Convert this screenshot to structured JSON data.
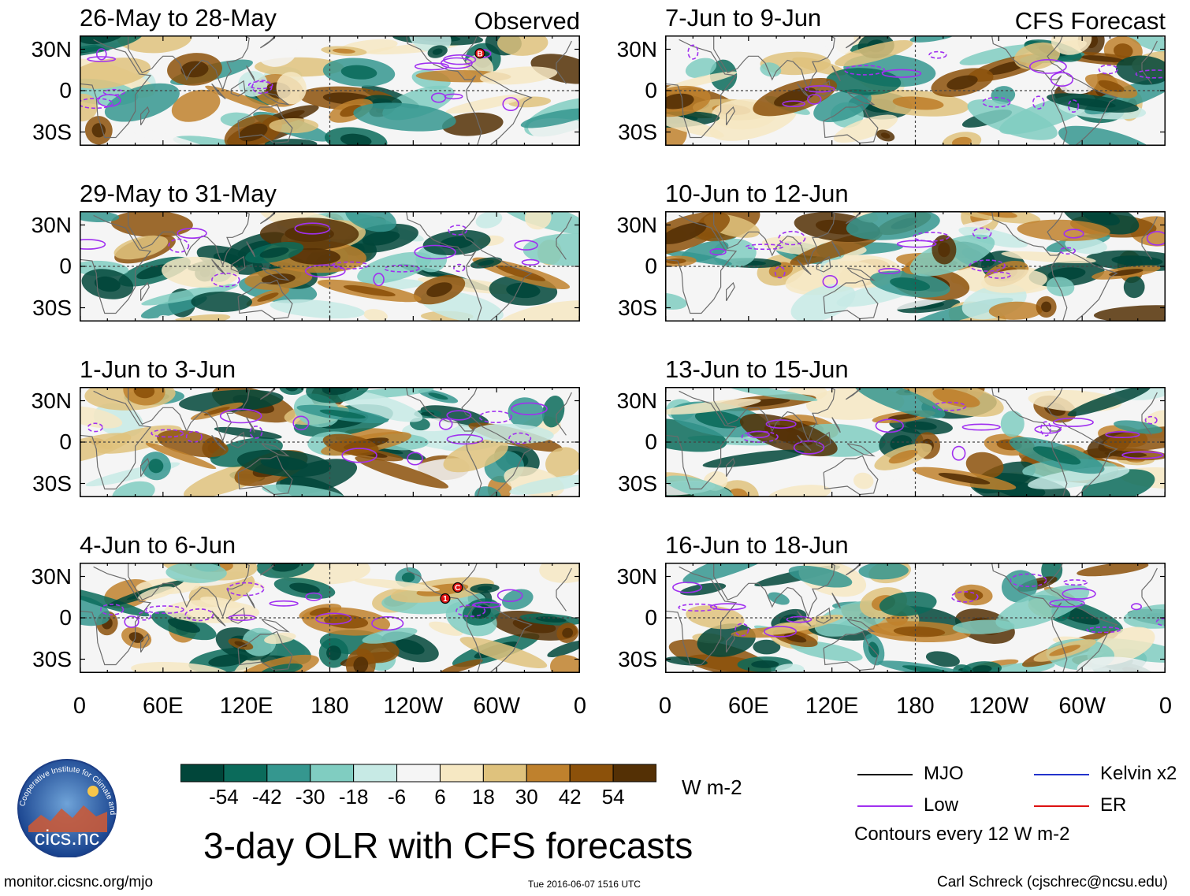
{
  "chart_data": {
    "type": "heatmap",
    "title": "3-day OLR with CFS forecasts",
    "units": "W m-2",
    "columns": [
      {
        "label": "Observed",
        "panels": [
          "26-May to 28-May",
          "29-May to 31-May",
          "1-Jun to 3-Jun",
          "4-Jun to 6-Jun"
        ]
      },
      {
        "label": "CFS Forecast",
        "panels": [
          "7-Jun to 9-Jun",
          "10-Jun to 12-Jun",
          "13-Jun to 15-Jun",
          "16-Jun to 18-Jun"
        ]
      }
    ],
    "lat_ticks": [
      "30N",
      "0",
      "30S"
    ],
    "lat_range": [
      -40,
      40
    ],
    "lon_ticks": [
      "0",
      "60E",
      "120E",
      "180",
      "120W",
      "60W",
      "0"
    ],
    "lon_range": [
      0,
      360
    ],
    "colorbar": {
      "bins": [
        -60,
        -48,
        -36,
        -24,
        -12,
        0,
        12,
        24,
        36,
        48,
        60
      ],
      "labels": [
        "-54",
        "-42",
        "-30",
        "-18",
        "-6",
        "6",
        "18",
        "30",
        "42",
        "54"
      ],
      "colors": [
        "#01463a",
        "#0b6b5b",
        "#35978f",
        "#80cdc1",
        "#c7eae5",
        "#f5f5f5",
        "#f6e8c3",
        "#dfc27d",
        "#bf812d",
        "#8c510a",
        "#543005"
      ]
    },
    "legend": [
      {
        "label": "MJO",
        "color": "#000000"
      },
      {
        "label": "Kelvin x2",
        "color": "#2233cc"
      },
      {
        "label": "Low",
        "color": "#a030f0"
      },
      {
        "label": "ER",
        "color": "#dd1111"
      }
    ],
    "contour_note": "Contours every 12 W m-2",
    "storm_markers": [
      {
        "panel": 0,
        "label": "B",
        "lon": 288,
        "lat": 27
      },
      {
        "panel": 3,
        "label": "C",
        "lon": 272,
        "lat": 22
      },
      {
        "panel": 3,
        "label": "1",
        "lon": 263,
        "lat": 14
      }
    ]
  },
  "footer": {
    "left": "monitor.cicsnc.org/mjo",
    "center": "Tue 2016-06-07 1516 UTC",
    "right": "Carl Schreck (cjschrec@ncsu.edu)"
  },
  "logo": {
    "text": "cics.nc",
    "ring_text": "Cooperative Institute for Climate and Satellites"
  }
}
